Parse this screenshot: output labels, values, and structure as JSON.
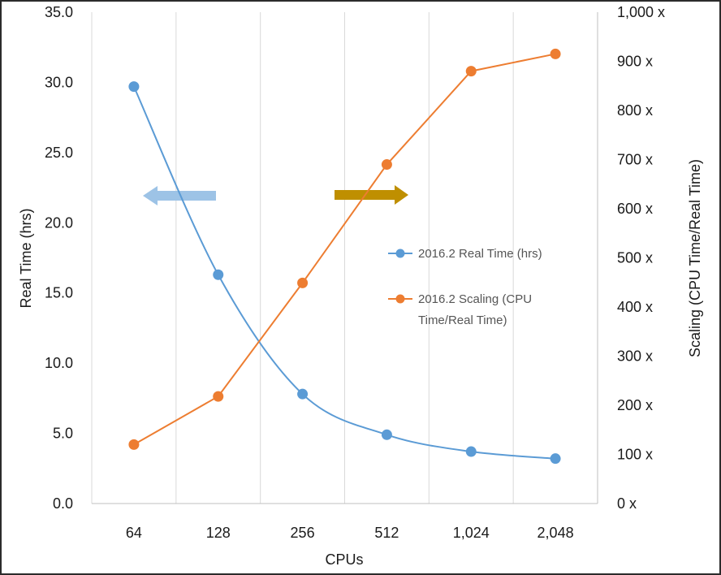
{
  "chart_data": {
    "type": "line",
    "categories": [
      "64",
      "128",
      "256",
      "512",
      "1,024",
      "2,048"
    ],
    "xlabel": "CPUs",
    "ylabel": "Real Time (hrs)",
    "y2label": "Scaling (CPU Time/Real Time)",
    "ylim": [
      0,
      35
    ],
    "y2lim": [
      0,
      1000
    ],
    "yticks": [
      "0.0",
      "5.0",
      "10.0",
      "15.0",
      "20.0",
      "25.0",
      "30.0",
      "35.0"
    ],
    "y2ticks": [
      "0 x",
      "100 x",
      "200 x",
      "300 x",
      "400 x",
      "500 x",
      "600 x",
      "700 x",
      "800 x",
      "900 x",
      "1,000 x"
    ],
    "grid": "vertical",
    "legend_position": "right-center",
    "series": [
      {
        "name": "2016.2 Real Time (hrs)",
        "axis": "left",
        "values": [
          29.7,
          16.3,
          7.8,
          4.9,
          3.7,
          3.2
        ],
        "color": "#5b9bd5",
        "smooth": true
      },
      {
        "name": "2016.2 Scaling (CPU Time/Real Time)",
        "legend_lines": [
          "2016.2 Scaling (CPU",
          "Time/Real Time)"
        ],
        "axis": "right",
        "values": [
          120,
          218,
          449,
          690,
          880,
          915
        ],
        "color": "#ed7d31",
        "smooth": false
      }
    ],
    "annotations": [
      {
        "type": "arrow",
        "direction": "left",
        "points_to": "left-axis",
        "color": "#9dc3e6"
      },
      {
        "type": "arrow",
        "direction": "right",
        "points_to": "right-axis",
        "color": "#bf8f00"
      }
    ]
  }
}
